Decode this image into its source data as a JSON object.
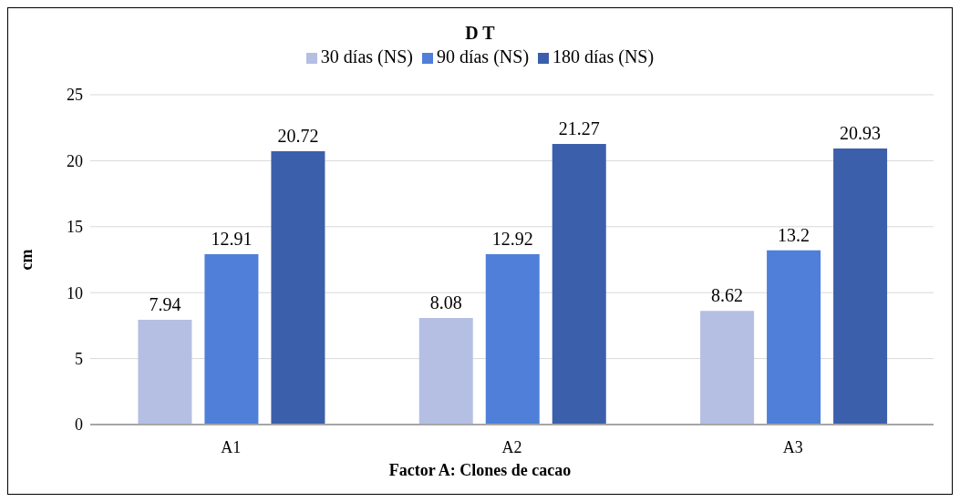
{
  "chart_data": {
    "type": "bar",
    "title": "D T",
    "xlabel": "Factor A: Clones de cacao",
    "ylabel": "cm",
    "categories": [
      "A1",
      "A2",
      "A3"
    ],
    "series": [
      {
        "name": "30 días (NS)",
        "color": "#b4bfe3",
        "values": [
          7.94,
          8.08,
          8.62
        ]
      },
      {
        "name": "90 días (NS)",
        "color": "#4f7fd8",
        "values": [
          12.91,
          12.92,
          13.2
        ]
      },
      {
        "name": "180 días (NS)",
        "color": "#3b5fab",
        "values": [
          20.72,
          21.27,
          20.93
        ]
      }
    ],
    "ylim": [
      0,
      25
    ],
    "yticks": [
      0,
      5,
      10,
      15,
      20,
      25
    ],
    "grid": "y",
    "legend": "top",
    "data_labels": true
  }
}
